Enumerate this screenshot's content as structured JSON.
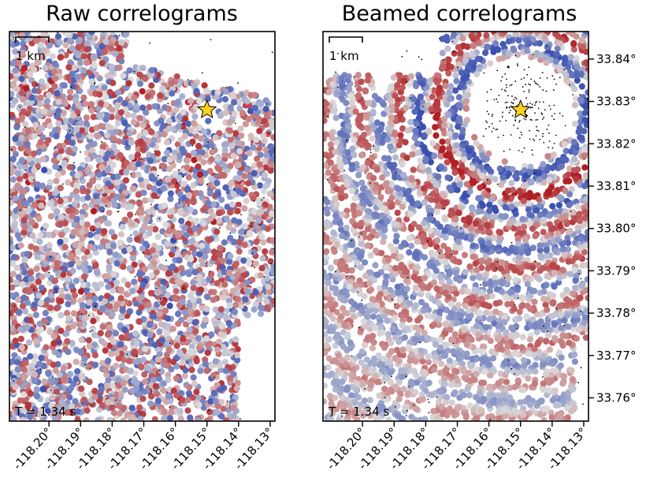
{
  "chart_data": [
    {
      "type": "scatter",
      "title": "Raw correlograms",
      "annotation": "T = 1.34 s",
      "scalebar_label": "1 km",
      "source_marker": {
        "lon": -118.15,
        "lat": 33.828
      },
      "xticks": [
        -118.2,
        -118.19,
        -118.18,
        -118.17,
        -118.16,
        -118.15,
        -118.14,
        -118.13
      ],
      "xtick_labels": [
        "-118.20°",
        "-118.19°",
        "-118.18°",
        "-118.17°",
        "-118.16°",
        "-118.15°",
        "-118.14°",
        "-118.13°"
      ],
      "xlim": [
        -118.2125,
        -118.1285
      ],
      "ylim": [
        33.7545,
        33.8465
      ],
      "pattern": "incoherent",
      "colormap": [
        "#3a4fb0",
        "#dcdcdc",
        "#b01f24"
      ],
      "grid": false
    },
    {
      "type": "scatter",
      "title": "Beamed correlograms",
      "annotation": "T = 1.34 s",
      "scalebar_label": "1 km",
      "source_marker": {
        "lon": -118.15,
        "lat": 33.828
      },
      "xticks": [
        -118.2,
        -118.19,
        -118.18,
        -118.17,
        -118.16,
        -118.15,
        -118.14,
        -118.13
      ],
      "xtick_labels": [
        "-118.20°",
        "-118.19°",
        "-118.18°",
        "-118.17°",
        "-118.16°",
        "-118.15°",
        "-118.14°",
        "-118.13°"
      ],
      "yticks": [
        33.76,
        33.77,
        33.78,
        33.79,
        33.8,
        33.81,
        33.82,
        33.83,
        33.84
      ],
      "ytick_labels": [
        "33.76°",
        "33.77°",
        "33.78°",
        "33.79°",
        "33.80°",
        "33.81°",
        "33.82°",
        "33.83°",
        "33.84°"
      ],
      "xlim": [
        -118.2125,
        -118.1285
      ],
      "ylim": [
        33.7545,
        33.8465
      ],
      "pattern": "coherent-rings",
      "colormap": [
        "#3a4fb0",
        "#dcdcdc",
        "#b01f24"
      ],
      "grid": false
    }
  ]
}
